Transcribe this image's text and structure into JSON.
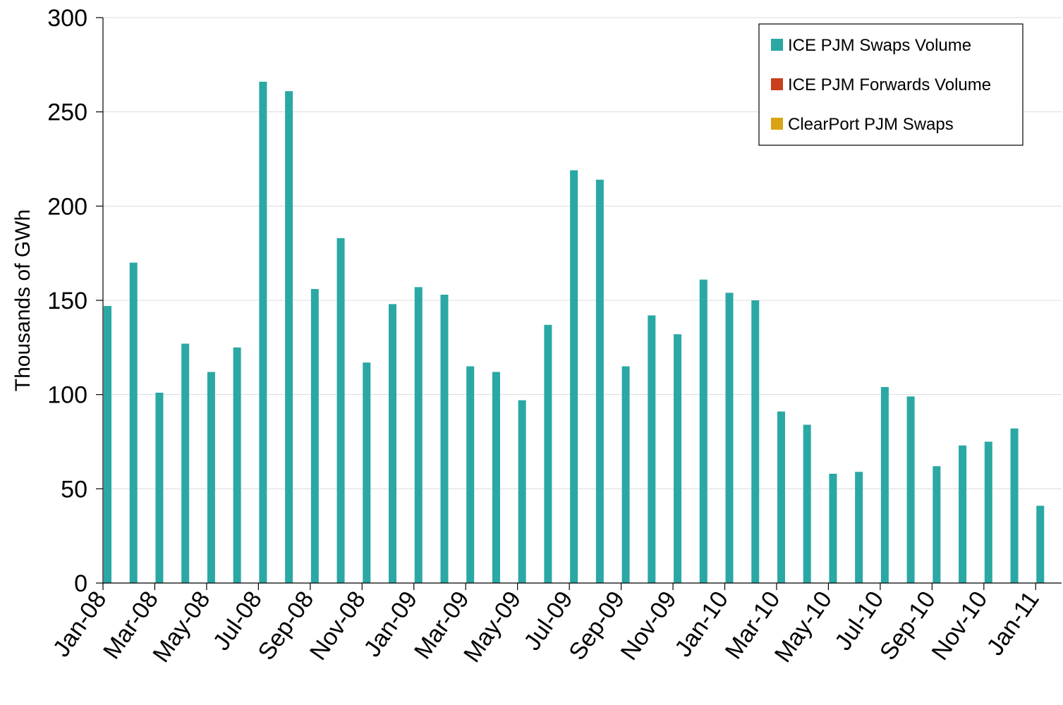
{
  "chart_data": {
    "type": "bar",
    "ylabel": "Thousands of GWh",
    "xlabel": "",
    "ylim": [
      0,
      300
    ],
    "yticks": [
      0,
      50,
      100,
      150,
      200,
      250,
      300
    ],
    "grid": true,
    "legend_position": "top-right",
    "categories": [
      "Jan-08",
      "Feb-08",
      "Mar-08",
      "Apr-08",
      "May-08",
      "Jun-08",
      "Jul-08",
      "Aug-08",
      "Sep-08",
      "Oct-08",
      "Nov-08",
      "Dec-08",
      "Jan-09",
      "Feb-09",
      "Mar-09",
      "Apr-09",
      "May-09",
      "Jun-09",
      "Jul-09",
      "Aug-09",
      "Sep-09",
      "Oct-09",
      "Nov-09",
      "Dec-09",
      "Jan-10",
      "Feb-10",
      "Mar-10",
      "Apr-10",
      "May-10",
      "Jun-10",
      "Jul-10",
      "Aug-10",
      "Sep-10",
      "Oct-10",
      "Nov-10",
      "Dec-10",
      "Jan-11"
    ],
    "visible_tick_labels": [
      "Jan-08",
      "Mar-08",
      "May-08",
      "Jul-08",
      "Sep-08",
      "Nov-08",
      "Jan-09",
      "Mar-09",
      "May-09",
      "Jul-09",
      "Sep-09",
      "Nov-09",
      "Jan-10",
      "Mar-10",
      "May-10",
      "Jul-10",
      "Sep-10",
      "Nov-10",
      "Jan-11"
    ],
    "series": [
      {
        "name": "ICE PJM Swaps Volume",
        "color": "#2aa8a4",
        "values": [
          147,
          170,
          101,
          127,
          112,
          125,
          266,
          261,
          156,
          183,
          117,
          148,
          157,
          153,
          115,
          112,
          97,
          137,
          219,
          214,
          115,
          142,
          132,
          161,
          154,
          150,
          91,
          84,
          58,
          59,
          104,
          99,
          62,
          73,
          75,
          82,
          41
        ]
      },
      {
        "name": "ICE PJM Forwards Volume",
        "color": "#c8401c",
        "values": [
          0,
          0,
          0,
          0,
          0,
          0,
          0,
          0,
          0,
          0,
          0,
          0,
          0,
          0,
          0,
          0,
          0,
          0,
          0,
          0,
          0,
          0,
          0,
          0,
          0,
          0,
          0,
          0,
          0,
          0,
          0,
          0,
          0,
          0,
          0,
          0,
          0
        ]
      },
      {
        "name": "ClearPort PJM Swaps",
        "color": "#d9a414",
        "values": [
          0,
          0,
          0,
          0,
          0,
          0,
          0,
          0,
          0,
          0,
          0,
          0,
          0,
          0,
          0,
          0,
          0,
          0,
          0,
          0,
          0,
          0,
          0,
          0,
          0,
          0,
          0,
          0,
          0,
          0,
          0,
          0,
          0,
          0,
          0,
          0,
          0
        ]
      }
    ]
  }
}
